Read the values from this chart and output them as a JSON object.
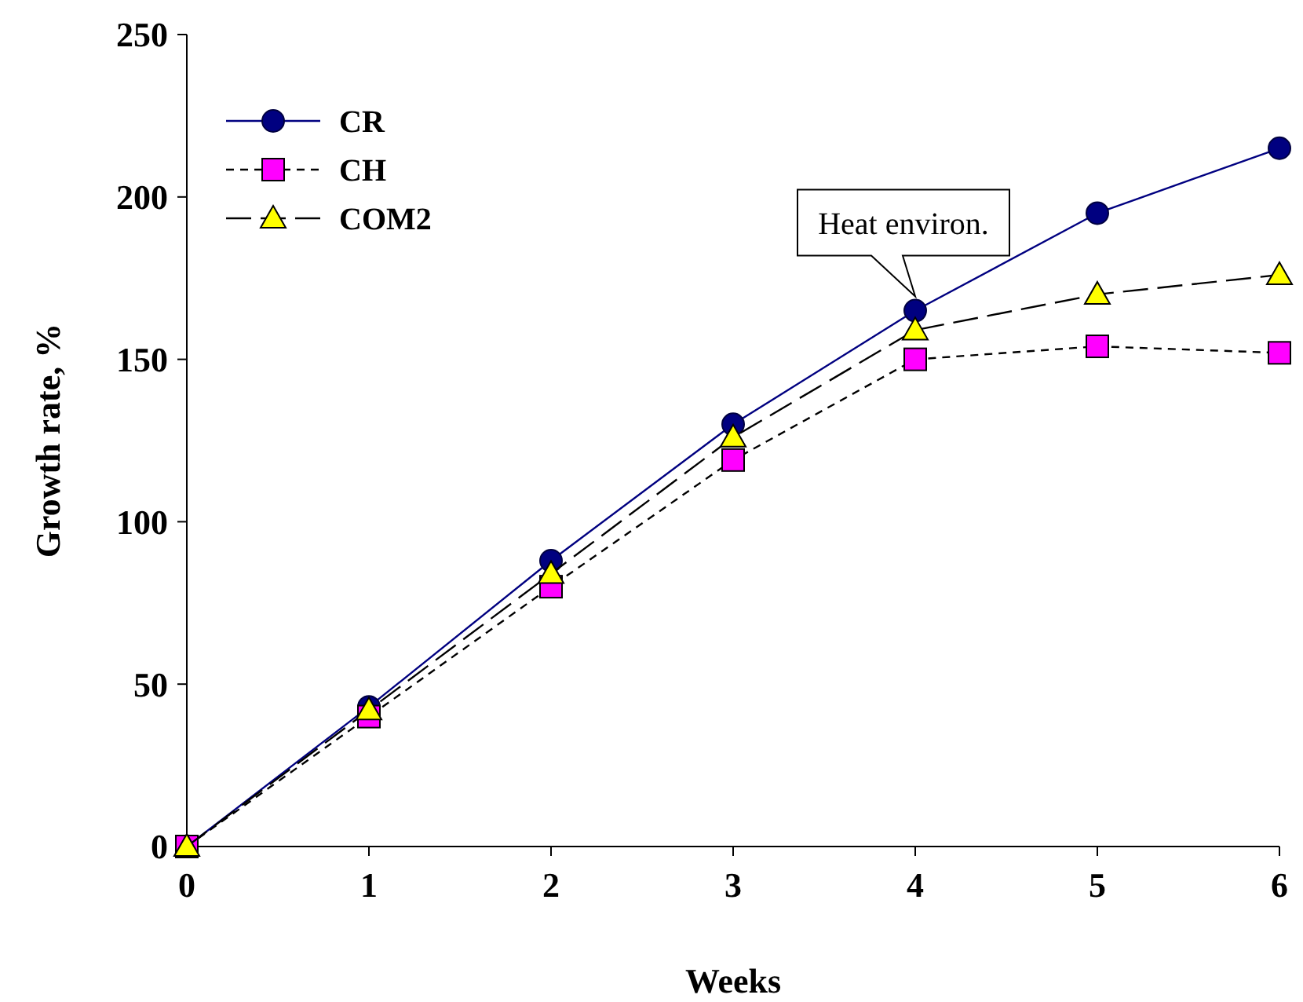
{
  "chart_data": {
    "type": "line",
    "xlabel": "Weeks",
    "ylabel": "Growth rate, %",
    "x": [
      0,
      1,
      2,
      3,
      4,
      5,
      6
    ],
    "xlim": [
      0,
      6
    ],
    "xticks": [
      0,
      1,
      2,
      3,
      4,
      5,
      6
    ],
    "ylim": [
      0,
      250
    ],
    "yticks": [
      0,
      50,
      100,
      150,
      200,
      250
    ],
    "grid": false,
    "legend": "top left",
    "series": [
      {
        "name": "CR",
        "color": "#000080",
        "marker": "circle",
        "line_style": "solid",
        "values": [
          0,
          43,
          88,
          130,
          165,
          195,
          215
        ]
      },
      {
        "name": "CH",
        "color": "#ff00ff",
        "marker": "square",
        "line_style": "dashed",
        "values": [
          0,
          40,
          80,
          119,
          150,
          154,
          152
        ]
      },
      {
        "name": "COM2",
        "color": "#ffff00",
        "marker": "triangle",
        "line_style": "longdash",
        "values": [
          0,
          42,
          84,
          126,
          159,
          170,
          176
        ]
      }
    ],
    "annotations": [
      {
        "text": "Heat environ.",
        "x": 4,
        "y": 165
      }
    ]
  }
}
